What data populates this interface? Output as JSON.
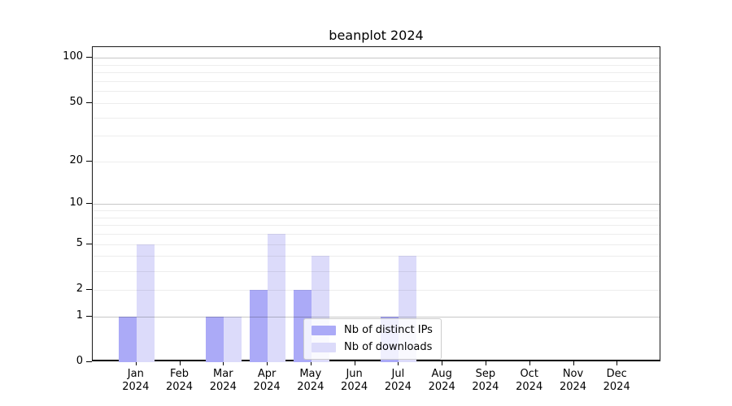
{
  "chart_data": {
    "type": "bar",
    "title": "beanplot 2024",
    "categories": [
      "Jan",
      "Feb",
      "Mar",
      "Apr",
      "May",
      "Jun",
      "Jul",
      "Aug",
      "Sep",
      "Oct",
      "Nov",
      "Dec"
    ],
    "category_year": "2024",
    "series": [
      {
        "name": "Nb of distinct IPs",
        "color": "#abaaf7",
        "values": [
          1,
          0,
          1,
          2,
          2,
          0,
          1,
          0,
          0,
          0,
          0,
          0
        ]
      },
      {
        "name": "Nb of downloads",
        "color": "#dcdbfa",
        "values": [
          5,
          0,
          1,
          6,
          4,
          0,
          4,
          0,
          0,
          0,
          0,
          0
        ]
      }
    ],
    "yscale": "log1p",
    "ylim": [
      0,
      118
    ],
    "y_tick_values": [
      0,
      1,
      2,
      5,
      10,
      20,
      50,
      100
    ],
    "y_tick_labels": [
      "0",
      "1",
      "2",
      "5",
      "10",
      "20",
      "50",
      "100"
    ],
    "grid_minor_values": [
      2,
      3,
      4,
      5,
      6,
      7,
      8,
      9,
      20,
      30,
      40,
      50,
      60,
      70,
      80,
      90
    ],
    "grid_major_values": [
      1,
      10,
      100
    ],
    "grid": "horizontal",
    "legend_position": "lower center"
  }
}
